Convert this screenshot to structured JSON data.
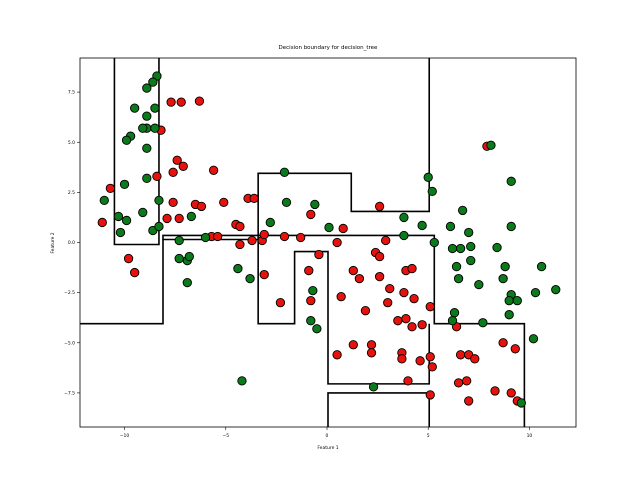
{
  "chart_data": {
    "type": "scatter",
    "title": "Decision boundary for decision_tree",
    "xlabel": "Feature 1",
    "ylabel": "Feature 2",
    "xlim": [
      -12.2,
      12.3
    ],
    "ylim": [
      -9.2,
      9.2
    ],
    "xticks": [
      -10,
      -5,
      0,
      5,
      10
    ],
    "yticks": [
      -7.5,
      -5.0,
      -2.5,
      0.0,
      2.5,
      5.0,
      7.5
    ],
    "xtick_labels": [
      "−10",
      "−5",
      "0",
      "5",
      "10"
    ],
    "ytick_labels": [
      "−7.5",
      "−5.0",
      "−2.5",
      "0.0",
      "2.5",
      "5.0",
      "7.5"
    ],
    "grid": false,
    "colors": {
      "class_red": "#e8120c",
      "class_green": "#0b7a1a",
      "edge": "#000000",
      "boundary": "#000000"
    },
    "boundary_paths": [
      [
        [
          -10.5,
          9.2
        ],
        [
          -10.5,
          -0.1
        ],
        [
          -8.3,
          -0.1
        ],
        [
          -8.3,
          9.2
        ]
      ],
      [
        [
          -12.2,
          -4.05
        ],
        [
          -8.1,
          -4.05
        ],
        [
          -8.1,
          0.15
        ],
        [
          -3.4,
          0.15
        ],
        [
          -3.4,
          3.45
        ],
        [
          1.2,
          3.45
        ],
        [
          1.2,
          1.55
        ],
        [
          5.05,
          1.55
        ],
        [
          5.05,
          9.2
        ]
      ],
      [
        [
          -8.1,
          0.15
        ],
        [
          -8.1,
          0.35
        ],
        [
          5.3,
          0.35
        ],
        [
          5.3,
          -4.05
        ],
        [
          9.75,
          -4.05
        ],
        [
          9.75,
          -9.2
        ]
      ],
      [
        [
          -3.4,
          0.15
        ],
        [
          -3.4,
          -4.05
        ],
        [
          -1.6,
          -4.05
        ],
        [
          -1.6,
          -0.45
        ],
        [
          0.05,
          -0.45
        ],
        [
          0.05,
          -7.05
        ],
        [
          5.05,
          -7.05
        ],
        [
          5.05,
          -4.05
        ]
      ],
      [
        [
          0.05,
          -9.2
        ],
        [
          0.05,
          -7.5
        ],
        [
          5.05,
          -7.5
        ],
        [
          5.05,
          -9.2
        ]
      ]
    ],
    "series": [
      {
        "color": "red",
        "points": [
          [
            -10.7,
            2.7
          ],
          [
            -11.1,
            1.0
          ],
          [
            -9.8,
            -0.8
          ],
          [
            -9.5,
            -1.5
          ],
          [
            -8.4,
            3.3
          ],
          [
            -8.2,
            5.6
          ],
          [
            -7.7,
            7.0
          ],
          [
            -7.2,
            7.0
          ],
          [
            -6.3,
            7.05
          ],
          [
            -7.6,
            3.5
          ],
          [
            -7.4,
            4.1
          ],
          [
            -7.1,
            3.8
          ],
          [
            -7.6,
            2.0
          ],
          [
            -7.3,
            1.2
          ],
          [
            -7.9,
            1.2
          ],
          [
            -6.5,
            1.9
          ],
          [
            -6.2,
            1.8
          ],
          [
            -5.6,
            3.6
          ],
          [
            -5.1,
            2.0
          ],
          [
            -5.7,
            0.3
          ],
          [
            -5.4,
            0.3
          ],
          [
            -4.5,
            0.9
          ],
          [
            -4.3,
            0.8
          ],
          [
            -3.9,
            2.2
          ],
          [
            -3.6,
            2.2
          ],
          [
            -4.3,
            -0.1
          ],
          [
            -3.7,
            0.1
          ],
          [
            -3.2,
            0.1
          ],
          [
            -3.1,
            0.4
          ],
          [
            -2.3,
            -3.0
          ],
          [
            -3.1,
            -1.6
          ],
          [
            -2.1,
            0.3
          ],
          [
            -1.3,
            0.25
          ],
          [
            -0.4,
            -0.6
          ],
          [
            -0.9,
            -1.4
          ],
          [
            -0.8,
            -2.9
          ],
          [
            -0.8,
            1.4
          ],
          [
            0.5,
            0.0
          ],
          [
            0.8,
            0.7
          ],
          [
            0.7,
            -2.7
          ],
          [
            1.3,
            -1.4
          ],
          [
            1.6,
            -1.8
          ],
          [
            1.9,
            -3.4
          ],
          [
            1.3,
            -5.1
          ],
          [
            0.5,
            -5.6
          ],
          [
            2.2,
            -5.1
          ],
          [
            2.2,
            -5.5
          ],
          [
            2.4,
            -0.5
          ],
          [
            2.6,
            -0.7
          ],
          [
            2.6,
            1.8
          ],
          [
            2.9,
            0.1
          ],
          [
            2.6,
            -1.7
          ],
          [
            3.1,
            -2.3
          ],
          [
            3.0,
            -3.0
          ],
          [
            3.5,
            -3.9
          ],
          [
            3.8,
            -2.5
          ],
          [
            3.9,
            -3.8
          ],
          [
            4.3,
            -2.8
          ],
          [
            3.9,
            -1.4
          ],
          [
            4.2,
            -1.3
          ],
          [
            4.2,
            -4.2
          ],
          [
            4.7,
            -4.1
          ],
          [
            3.7,
            -5.5
          ],
          [
            3.7,
            -5.8
          ],
          [
            4.6,
            -5.9
          ],
          [
            4.0,
            -6.9
          ],
          [
            5.1,
            -3.2
          ],
          [
            5.1,
            -5.7
          ],
          [
            5.2,
            -6.2
          ],
          [
            5.1,
            -7.6
          ],
          [
            6.4,
            -4.2
          ],
          [
            6.6,
            -5.6
          ],
          [
            7.0,
            -5.6
          ],
          [
            7.3,
            -5.8
          ],
          [
            6.9,
            -6.9
          ],
          [
            6.5,
            -7.0
          ],
          [
            7.0,
            -7.9
          ],
          [
            8.7,
            -5.0
          ],
          [
            9.3,
            -5.3
          ],
          [
            8.3,
            -7.4
          ],
          [
            9.1,
            -7.5
          ],
          [
            9.4,
            -7.9
          ],
          [
            7.9,
            4.8
          ]
        ]
      },
      {
        "color": "green",
        "points": [
          [
            -8.4,
            8.3
          ],
          [
            -8.6,
            8.0
          ],
          [
            -8.9,
            7.7
          ],
          [
            -9.5,
            6.7
          ],
          [
            -8.5,
            6.7
          ],
          [
            -8.9,
            6.3
          ],
          [
            -8.9,
            5.7
          ],
          [
            -9.1,
            5.7
          ],
          [
            -8.5,
            5.7
          ],
          [
            -9.7,
            5.3
          ],
          [
            -9.9,
            5.1
          ],
          [
            -8.9,
            4.7
          ],
          [
            -8.9,
            3.2
          ],
          [
            -10.0,
            2.9
          ],
          [
            -11.0,
            2.1
          ],
          [
            -9.1,
            1.5
          ],
          [
            -8.3,
            2.1
          ],
          [
            -10.3,
            1.3
          ],
          [
            -9.9,
            1.1
          ],
          [
            -10.2,
            0.5
          ],
          [
            -8.6,
            0.6
          ],
          [
            -8.3,
            0.8
          ],
          [
            -7.3,
            0.1
          ],
          [
            -6.7,
            1.3
          ],
          [
            -6.9,
            -0.9
          ],
          [
            -6.8,
            -0.7
          ],
          [
            -7.3,
            -0.8
          ],
          [
            -6.9,
            -2.0
          ],
          [
            -6.0,
            0.25
          ],
          [
            -4.4,
            -1.3
          ],
          [
            -3.8,
            -1.8
          ],
          [
            -4.2,
            -6.9
          ],
          [
            -2.8,
            1.0
          ],
          [
            -2.0,
            2.0
          ],
          [
            -2.1,
            3.5
          ],
          [
            -0.6,
            1.9
          ],
          [
            0.1,
            0.75
          ],
          [
            -0.7,
            -2.4
          ],
          [
            -0.8,
            -3.9
          ],
          [
            -0.5,
            -4.3
          ],
          [
            2.3,
            -7.2
          ],
          [
            3.8,
            1.25
          ],
          [
            3.8,
            0.35
          ],
          [
            4.7,
            0.85
          ],
          [
            5.0,
            3.25
          ],
          [
            5.2,
            2.55
          ],
          [
            5.3,
            0.0
          ],
          [
            6.1,
            0.8
          ],
          [
            6.2,
            -0.3
          ],
          [
            6.6,
            -0.3
          ],
          [
            6.4,
            -1.2
          ],
          [
            6.5,
            -1.8
          ],
          [
            6.7,
            1.6
          ],
          [
            7.0,
            0.5
          ],
          [
            7.1,
            -0.2
          ],
          [
            7.1,
            -0.9
          ],
          [
            7.5,
            -2.1
          ],
          [
            6.3,
            -3.5
          ],
          [
            6.2,
            -3.9
          ],
          [
            7.7,
            -4.0
          ],
          [
            8.1,
            4.85
          ],
          [
            8.4,
            -0.25
          ],
          [
            8.8,
            -1.2
          ],
          [
            8.7,
            -1.8
          ],
          [
            9.1,
            3.05
          ],
          [
            9.1,
            0.8
          ],
          [
            9.1,
            -2.6
          ],
          [
            9.0,
            -2.9
          ],
          [
            9.4,
            -2.9
          ],
          [
            9.0,
            -3.6
          ],
          [
            10.2,
            -4.8
          ],
          [
            10.3,
            -2.5
          ],
          [
            10.6,
            -1.2
          ],
          [
            11.3,
            -2.35
          ],
          [
            9.6,
            -8.0
          ]
        ]
      }
    ]
  }
}
